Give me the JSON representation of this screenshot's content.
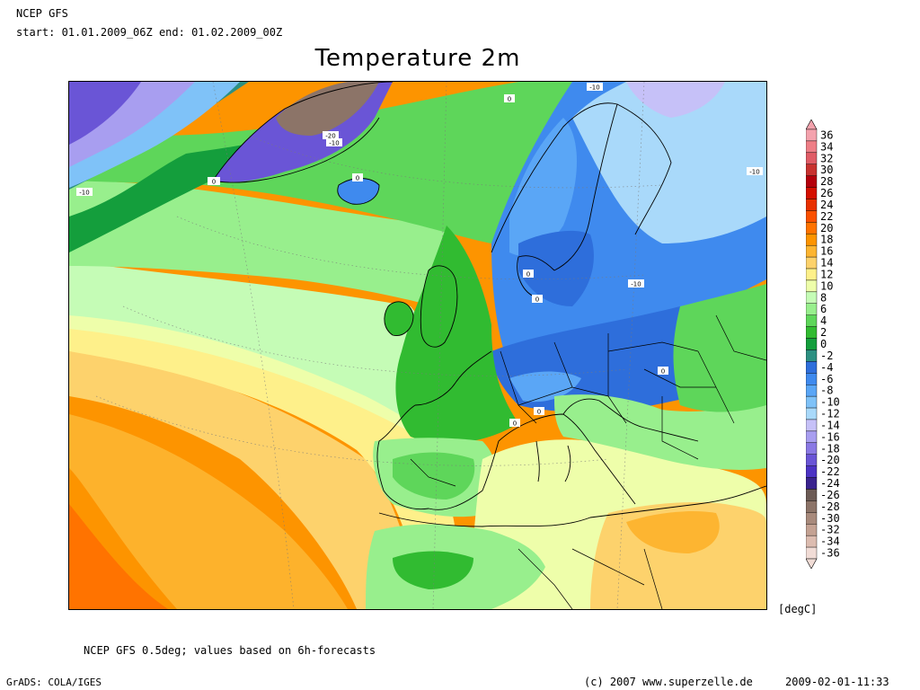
{
  "header": {
    "model": "NCEP GFS",
    "period": "start: 01.01.2009_06Z  end: 01.02.2009_00Z"
  },
  "map": {
    "title": "Temperature 2m",
    "contour_labels": [
      "0",
      "-10",
      "-20",
      "-10",
      "-10",
      "0",
      "0",
      "-10",
      "-10",
      "0",
      "0",
      "0",
      "0",
      "0"
    ]
  },
  "legend": {
    "unit": "[degC]",
    "classes": [
      {
        "label": "36",
        "color": "#f4a2ad"
      },
      {
        "label": "34",
        "color": "#ee7e86"
      },
      {
        "label": "32",
        "color": "#e05c66"
      },
      {
        "label": "30",
        "color": "#c8322f"
      },
      {
        "label": "28",
        "color": "#b4000c"
      },
      {
        "label": "26",
        "color": "#d41000"
      },
      {
        "label": "24",
        "color": "#e83000"
      },
      {
        "label": "22",
        "color": "#fa5000"
      },
      {
        "label": "20",
        "color": "#ff7300"
      },
      {
        "label": "18",
        "color": "#fd9400"
      },
      {
        "label": "16",
        "color": "#fdb531"
      },
      {
        "label": "14",
        "color": "#fdd26c"
      },
      {
        "label": "12",
        "color": "#fef08a"
      },
      {
        "label": "10",
        "color": "#eefeaa"
      },
      {
        "label": "8",
        "color": "#c5fcb6"
      },
      {
        "label": "6",
        "color": "#98ef8d"
      },
      {
        "label": "4",
        "color": "#5ed65a"
      },
      {
        "label": "2",
        "color": "#31bb31"
      },
      {
        "label": "0",
        "color": "#149e3c"
      },
      {
        "label": "-2",
        "color": "#2d9082"
      },
      {
        "label": "-4",
        "color": "#2e6edb"
      },
      {
        "label": "-6",
        "color": "#3f8aee"
      },
      {
        "label": "-8",
        "color": "#5aa6f6"
      },
      {
        "label": "-10",
        "color": "#7fc2f8"
      },
      {
        "label": "-12",
        "color": "#a9d9fa"
      },
      {
        "label": "-14",
        "color": "#c6c1f8"
      },
      {
        "label": "-16",
        "color": "#a89ef0"
      },
      {
        "label": "-18",
        "color": "#8a79e4"
      },
      {
        "label": "-20",
        "color": "#6a55d6"
      },
      {
        "label": "-22",
        "color": "#4c33c4"
      },
      {
        "label": "-24",
        "color": "#3a238e"
      },
      {
        "label": "-26",
        "color": "#6c5b55"
      },
      {
        "label": "-28",
        "color": "#8c7468"
      },
      {
        "label": "-30",
        "color": "#a88a7c"
      },
      {
        "label": "-32",
        "color": "#c4a293"
      },
      {
        "label": "-34",
        "color": "#dcbcb0"
      },
      {
        "label": "-36",
        "color": "#f1dcd6"
      }
    ]
  },
  "footer": {
    "note": "NCEP GFS 0.5deg; values based on 6h-forecasts",
    "software": "GrADS: COLA/IGES",
    "copyright": "(c) 2007 www.superzelle.de",
    "timestamp": "2009-02-01-11:33"
  }
}
